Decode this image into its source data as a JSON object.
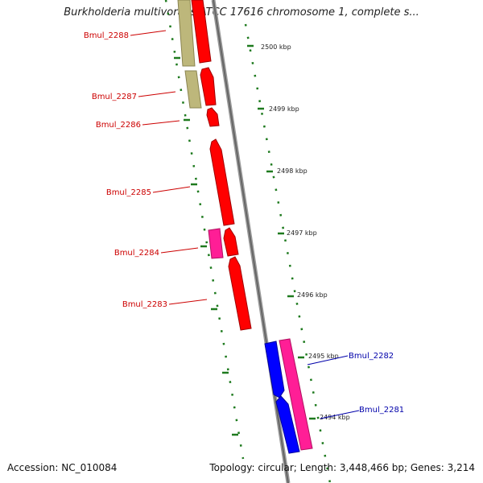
{
  "title": "Burkholderia multivorans ATCC 17616 chromosome 1, complete s...",
  "footer": {
    "accession": "Accession: NC_010084",
    "topology": "Topology: circular; Length: 3,448,466 bp; Genes: 3,214"
  },
  "colors": {
    "red": "#ff0000",
    "olive": "#bdb77b",
    "magenta": "#ff1e96",
    "blue": "#0000ff",
    "backbone": "#777777",
    "tick": "#1e7a1e",
    "label_red": "#cc0000",
    "label_blue": "#0000aa"
  },
  "kbp_ticks": [
    "2500 kbp",
    "2499 kbp",
    "2498 kbp",
    "2497 kbp",
    "2496 kbp",
    "2495 kbp",
    "2494 kbp"
  ],
  "genes": [
    {
      "name": "Bmul_2288",
      "color": "red"
    },
    {
      "name": "Bmul_2287",
      "color": "red"
    },
    {
      "name": "Bmul_2286",
      "color": "red"
    },
    {
      "name": "Bmul_2285",
      "color": "red"
    },
    {
      "name": "Bmul_2284",
      "color": "red"
    },
    {
      "name": "Bmul_2283",
      "color": "red"
    },
    {
      "name": "Bmul_2282",
      "color": "blue"
    },
    {
      "name": "Bmul_2281",
      "color": "blue"
    }
  ]
}
